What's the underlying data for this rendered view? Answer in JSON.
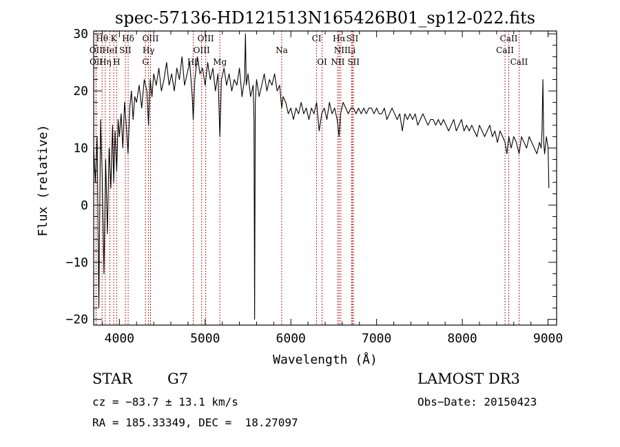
{
  "chart_data": {
    "type": "line",
    "title": "spec-57136-HD121513N165426B01_sp12-022.fits",
    "xlabel": "Wavelength (Å)",
    "ylabel": "Flux (relative)",
    "xlim": [
      3700,
      9100
    ],
    "ylim": [
      -21,
      30.5
    ],
    "xticks": [
      4000,
      5000,
      6000,
      7000,
      8000,
      9000
    ],
    "yticks": [
      -20,
      -10,
      0,
      10,
      20,
      30
    ],
    "x_tick_labels": [
      "4000",
      "5000",
      "6000",
      "7000",
      "8000",
      "9000"
    ],
    "y_tick_labels": [
      "−20",
      "−10",
      "0",
      "10",
      "20",
      "30"
    ],
    "series": [
      {
        "name": "spectrum",
        "x": [
          3700,
          3720,
          3740,
          3760,
          3780,
          3800,
          3820,
          3840,
          3860,
          3880,
          3900,
          3920,
          3933,
          3950,
          3968,
          3985,
          4000,
          4020,
          4040,
          4060,
          4080,
          4101,
          4120,
          4140,
          4160,
          4180,
          4200,
          4230,
          4260,
          4290,
          4320,
          4340,
          4360,
          4380,
          4400,
          4430,
          4460,
          4490,
          4520,
          4550,
          4580,
          4610,
          4640,
          4670,
          4700,
          4730,
          4760,
          4790,
          4820,
          4850,
          4861,
          4880,
          4910,
          4940,
          4970,
          5000,
          5030,
          5060,
          5090,
          5120,
          5150,
          5172,
          5190,
          5220,
          5250,
          5280,
          5310,
          5340,
          5370,
          5400,
          5430,
          5460,
          5470,
          5480,
          5500,
          5530,
          5560,
          5570,
          5577,
          5585,
          5600,
          5630,
          5660,
          5690,
          5720,
          5750,
          5780,
          5810,
          5840,
          5870,
          5893,
          5910,
          5940,
          5970,
          6000,
          6030,
          6060,
          6090,
          6120,
          6150,
          6180,
          6210,
          6240,
          6270,
          6300,
          6330,
          6360,
          6390,
          6420,
          6450,
          6480,
          6510,
          6540,
          6563,
          6580,
          6610,
          6640,
          6670,
          6700,
          6730,
          6760,
          6790,
          6820,
          6850,
          6880,
          6910,
          6940,
          6970,
          7000,
          7030,
          7060,
          7090,
          7120,
          7150,
          7180,
          7210,
          7240,
          7270,
          7300,
          7330,
          7360,
          7390,
          7420,
          7450,
          7480,
          7510,
          7540,
          7570,
          7600,
          7630,
          7660,
          7690,
          7720,
          7750,
          7780,
          7810,
          7840,
          7870,
          7900,
          7930,
          7960,
          7990,
          8020,
          8050,
          8080,
          8110,
          8140,
          8170,
          8200,
          8230,
          8260,
          8290,
          8320,
          8350,
          8380,
          8410,
          8440,
          8470,
          8498,
          8520,
          8542,
          8570,
          8600,
          8630,
          8662,
          8690,
          8720,
          8750,
          8780,
          8810,
          8840,
          8870,
          8900,
          8920,
          8930,
          8940,
          8950,
          8960,
          8980,
          9000,
          9010
        ],
        "y": [
          10,
          4,
          12,
          -18,
          15,
          5,
          -12,
          8,
          -5,
          10,
          3,
          14,
          4,
          13,
          6,
          15,
          12,
          16,
          10,
          18,
          14,
          9,
          17,
          20,
          15,
          19,
          18,
          21,
          17,
          22,
          20,
          14,
          22,
          19,
          23,
          21,
          24,
          20,
          22,
          25,
          21,
          23,
          20,
          24,
          22,
          26,
          21,
          23,
          25,
          19,
          15,
          22,
          26,
          23,
          24,
          21,
          25,
          22,
          24,
          20,
          23,
          12,
          22,
          24,
          21,
          23,
          20,
          22,
          21,
          24,
          19,
          22,
          30,
          21,
          23,
          19,
          21,
          15,
          -20,
          18,
          22,
          19,
          21,
          23,
          20,
          22,
          21,
          23,
          20,
          21,
          17,
          19,
          18,
          16,
          17,
          15,
          17,
          16,
          18,
          16,
          17,
          15,
          17,
          16,
          18,
          13,
          16,
          17,
          15,
          18,
          16,
          17,
          15,
          12,
          16,
          18,
          17,
          16,
          17,
          17,
          16,
          17,
          16,
          17,
          16,
          17,
          17,
          16,
          17,
          16,
          16,
          17,
          15,
          16,
          17,
          16,
          15,
          16,
          13,
          16,
          15,
          16,
          15,
          16,
          14,
          15,
          16,
          15,
          14,
          15,
          15,
          14,
          15,
          14,
          15,
          14,
          13,
          14,
          15,
          13,
          14,
          15,
          13,
          14,
          13,
          14,
          13,
          12,
          14,
          13,
          12,
          13,
          14,
          12,
          13,
          11,
          13,
          12,
          11,
          9,
          12,
          10,
          12,
          11,
          9,
          12,
          11,
          10,
          12,
          11,
          10,
          9,
          11,
          10,
          13,
          22,
          11,
          9,
          12,
          10,
          3
        ]
      }
    ],
    "line_markers": [
      {
        "label": "Hθ",
        "x": 3798,
        "row": 1
      },
      {
        "label": "K",
        "x": 3934,
        "row": 1
      },
      {
        "label": "Hδ",
        "x": 4102,
        "row": 1
      },
      {
        "label": "OIII",
        "x": 4363,
        "row": 1
      },
      {
        "label": "OIII",
        "x": 5007,
        "row": 1
      },
      {
        "label": "CI",
        "x": 6300,
        "row": 1
      },
      {
        "label": "Hα",
        "x": 6563,
        "row": 1
      },
      {
        "label": "SII",
        "x": 6717,
        "row": 1
      },
      {
        "label": "CaII",
        "x": 8542,
        "row": 1
      },
      {
        "label": "OII",
        "x": 3727,
        "row": 2
      },
      {
        "label": "HeI",
        "x": 3889,
        "row": 2
      },
      {
        "label": "SII",
        "x": 4069,
        "row": 2
      },
      {
        "label": "Hγ",
        "x": 4340,
        "row": 2
      },
      {
        "label": "OIII",
        "x": 4959,
        "row": 2
      },
      {
        "label": "Na",
        "x": 5893,
        "row": 2
      },
      {
        "label": "NII",
        "x": 6583,
        "row": 2
      },
      {
        "label": "Li",
        "x": 6708,
        "row": 2
      },
      {
        "label": "CaII",
        "x": 8498,
        "row": 2
      },
      {
        "label": "OII",
        "x": 3729,
        "row": 3
      },
      {
        "label": "Hη",
        "x": 3835,
        "row": 3
      },
      {
        "label": "H",
        "x": 3968,
        "row": 3
      },
      {
        "label": "G",
        "x": 4304,
        "row": 3
      },
      {
        "label": "Hβ",
        "x": 4861,
        "row": 3
      },
      {
        "label": "Mg",
        "x": 5172,
        "row": 3
      },
      {
        "label": "OI",
        "x": 6364,
        "row": 3
      },
      {
        "label": "NII",
        "x": 6548,
        "row": 3
      },
      {
        "label": "SII",
        "x": 6731,
        "row": 3
      },
      {
        "label": "CaII",
        "x": 8662,
        "row": 3
      }
    ],
    "marker_color": "#b22222"
  },
  "info": {
    "class": "STAR",
    "subclass": "G7",
    "survey": "LAMOST DR3",
    "redshift": "cz = −83.7 ± 13.1 km/s",
    "obs_date": "Obs−Date: 20150423",
    "coords": "RA = 185.33349, DEC =  18.27097"
  }
}
